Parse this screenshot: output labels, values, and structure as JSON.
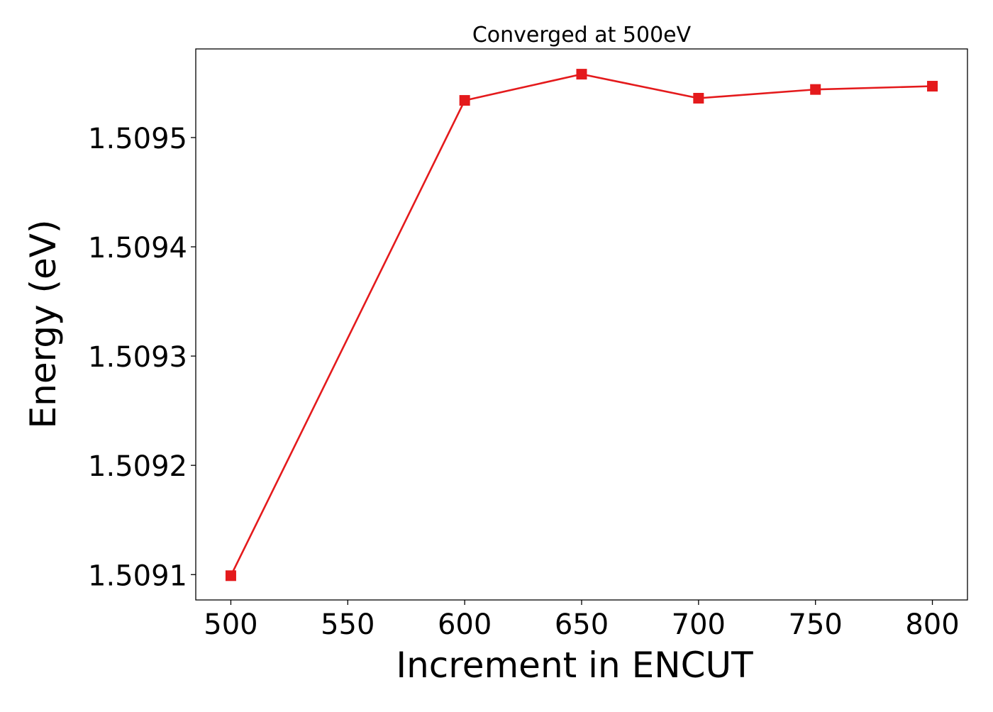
{
  "chart_data": {
    "type": "line",
    "title": "Converged at 500eV",
    "xlabel": "Increment in ENCUT",
    "ylabel": "Energy (eV)",
    "x": [
      500,
      600,
      650,
      700,
      750,
      800
    ],
    "series": [
      {
        "values": [
          1.509099,
          1.509534,
          1.509558,
          1.509536,
          1.509544,
          1.509547
        ],
        "color": "#e41a1c",
        "marker": "square"
      }
    ],
    "xticks": [
      500,
      550,
      600,
      650,
      700,
      750,
      800
    ],
    "xtick_labels": [
      "500",
      "550",
      "600",
      "650",
      "700",
      "750",
      "800"
    ],
    "yticks": [
      1.5091,
      1.5092,
      1.5093,
      1.5094,
      1.5095
    ],
    "ytick_labels": [
      "1.5091",
      "1.5092",
      "1.5093",
      "1.5094",
      "1.5095"
    ],
    "xlim": [
      485,
      815
    ],
    "ylim": [
      1.5090768,
      1.5095811
    ],
    "grid": false,
    "legend": false
  }
}
